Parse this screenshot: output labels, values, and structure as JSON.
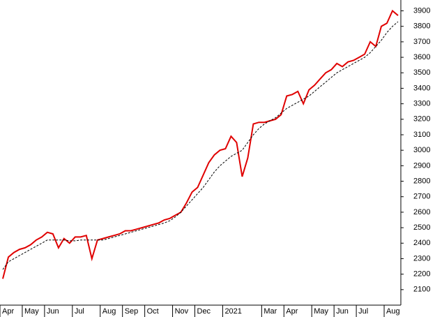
{
  "chart_data": {
    "type": "line",
    "categories": [
      "Apr",
      null,
      null,
      null,
      "May",
      null,
      null,
      null,
      "Jun",
      null,
      null,
      null,
      null,
      "Jul",
      null,
      null,
      null,
      null,
      "Aug",
      null,
      null,
      null,
      "Sep",
      null,
      null,
      null,
      "Oct",
      null,
      null,
      null,
      null,
      "Nov",
      null,
      null,
      null,
      "Dec",
      null,
      null,
      null,
      null,
      "2021",
      null,
      null,
      null,
      null,
      null,
      null,
      "Mar",
      null,
      null,
      null,
      "Apr",
      null,
      null,
      null,
      null,
      "May",
      null,
      null,
      null,
      "Jun",
      null,
      null,
      null,
      "Jul",
      null,
      null,
      null,
      null,
      "Aug",
      null,
      null
    ],
    "series": [
      {
        "color": "#e00000",
        "line_style": "solid",
        "values": [
          2170,
          2310,
          2340,
          2360,
          2370,
          2390,
          2420,
          2440,
          2470,
          2460,
          2370,
          2430,
          2400,
          2440,
          2440,
          2450,
          2300,
          2420,
          2430,
          2440,
          2450,
          2460,
          2480,
          2480,
          2490,
          2500,
          2510,
          2520,
          2530,
          2550,
          2560,
          2580,
          2600,
          2660,
          2730,
          2760,
          2840,
          2920,
          2970,
          3000,
          3010,
          3090,
          3050,
          2830,
          2950,
          3170,
          3180,
          3180,
          3190,
          3200,
          3230,
          3350,
          3360,
          3380,
          3300,
          3390,
          3420,
          3460,
          3500,
          3520,
          3560,
          3540,
          3570,
          3580,
          3600,
          3620,
          3700,
          3670,
          3800,
          3820,
          3900,
          3870
        ]
      },
      {
        "color": "#000000",
        "line_style": "dashed",
        "values": [
          2230,
          2280,
          2300,
          2320,
          2340,
          2360,
          2380,
          2400,
          2420,
          2420,
          2420,
          2420,
          2415,
          2415,
          2420,
          2420,
          2420,
          2420,
          2420,
          2430,
          2440,
          2450,
          2460,
          2470,
          2480,
          2490,
          2500,
          2510,
          2520,
          2530,
          2545,
          2570,
          2600,
          2640,
          2680,
          2720,
          2760,
          2810,
          2860,
          2900,
          2930,
          2960,
          2980,
          3000,
          3050,
          3100,
          3140,
          3170,
          3190,
          3210,
          3240,
          3270,
          3290,
          3310,
          3330,
          3350,
          3380,
          3410,
          3440,
          3470,
          3500,
          3520,
          3540,
          3560,
          3580,
          3600,
          3630,
          3670,
          3710,
          3760,
          3800,
          3830
        ]
      }
    ],
    "ylim": [
      2000,
      3970
    ],
    "yticks": [
      2100,
      2200,
      2300,
      2400,
      2500,
      2600,
      2700,
      2800,
      2900,
      3000,
      3100,
      3200,
      3300,
      3400,
      3500,
      3600,
      3700,
      3800,
      3900
    ],
    "grid": false
  }
}
